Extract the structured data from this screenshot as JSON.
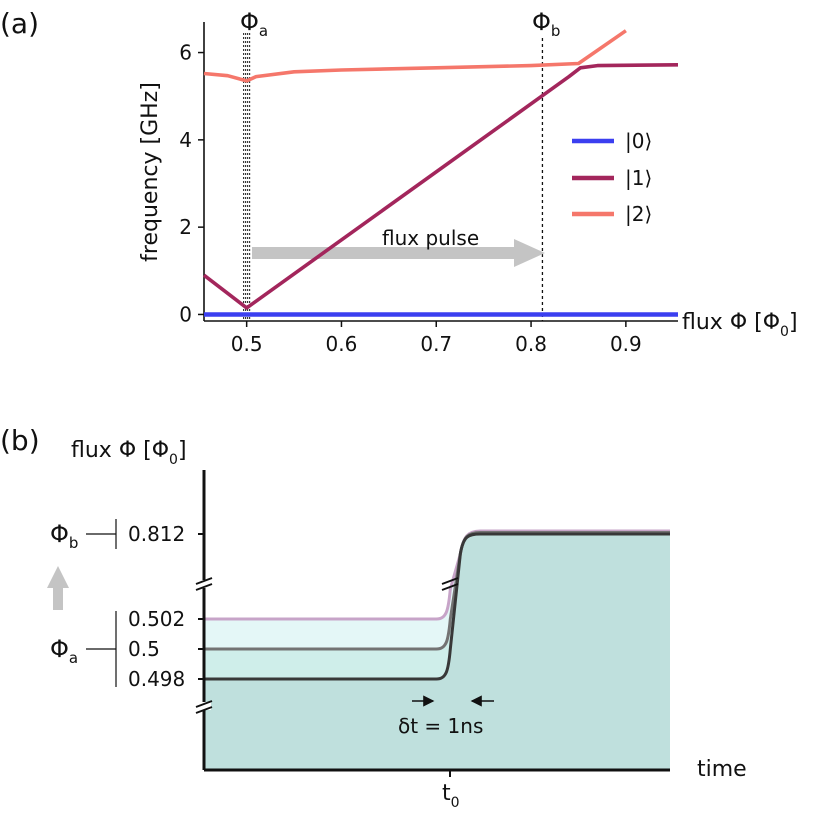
{
  "colors": {
    "level0": "#3b3ff0",
    "level1": "#a3265c",
    "level2": "#f5776b",
    "arrow": "#c4c4c4",
    "fill_outer": "#e4f7f7",
    "fill_mid": "#cfeeea",
    "fill_inner": "#bfe0dd",
    "trace_hi": "#c7a4c8",
    "trace_mid": "#737373",
    "trace_lo": "#383838"
  },
  "panel_a": {
    "label": "(a)",
    "phi_a": "Φ",
    "phi_a_sub": "a",
    "phi_b": "Φ",
    "phi_b_sub": "b",
    "arrow_label": "flux pulse",
    "xlabel_main": "flux Φ [Φ",
    "xlabel_sub": "0",
    "xlabel_end": "]",
    "ylabel": "frequency [GHz]",
    "legend": [
      "|0⟩",
      "|1⟩",
      "|2⟩"
    ]
  },
  "panel_b": {
    "label": "(b)",
    "ylabel_main": "flux Φ [Φ",
    "ylabel_sub": "0",
    "ylabel_end": "]",
    "xlabel": "time",
    "t0_main": "t",
    "t0_sub": "0",
    "phi_b": "Φ",
    "phi_b_sub": "b",
    "phi_a": "Φ",
    "phi_a_sub": "a",
    "dt_label": "δt = 1ns",
    "tick_labels": [
      "0.812",
      "0.502",
      "0.5",
      "0.498"
    ]
  },
  "chart_data": [
    {
      "type": "line",
      "xlim": [
        0.455,
        0.955
      ],
      "ylim": [
        -0.15,
        6.7
      ],
      "xticks": [
        0.5,
        0.6,
        0.7,
        0.8,
        0.9
      ],
      "yticks": [
        0,
        2,
        4,
        6
      ],
      "markers": {
        "phi_a": 0.5,
        "phi_b": 0.812
      },
      "series": [
        {
          "name": "|0⟩",
          "x": [
            0.455,
            0.955
          ],
          "y": [
            0.0,
            0.0
          ]
        },
        {
          "name": "|1⟩",
          "x": [
            0.455,
            0.5,
            0.84,
            0.852,
            0.87,
            0.955
          ],
          "y": [
            0.9,
            0.15,
            5.45,
            5.65,
            5.7,
            5.72
          ]
        },
        {
          "name": "|2⟩",
          "x": [
            0.455,
            0.48,
            0.5,
            0.51,
            0.55,
            0.6,
            0.7,
            0.8,
            0.85,
            0.9
          ],
          "y": [
            5.52,
            5.47,
            5.35,
            5.45,
            5.56,
            5.6,
            5.65,
            5.7,
            5.75,
            6.5
          ]
        }
      ]
    },
    {
      "type": "line",
      "t0_fraction": 0.52,
      "rise_time": "1ns",
      "series": [
        {
          "values": [
            0.502,
            0.812
          ]
        },
        {
          "values": [
            0.5,
            0.812
          ]
        },
        {
          "values": [
            0.498,
            0.812
          ]
        }
      ]
    }
  ]
}
